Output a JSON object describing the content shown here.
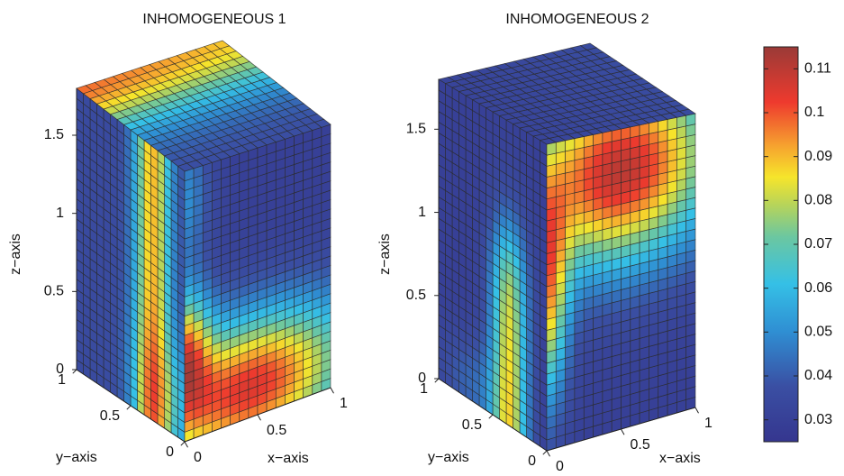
{
  "chart_data": [
    {
      "type": "heatmap",
      "subtype": "3d-box-surface",
      "title": "INHOMOGENEOUS 1",
      "xlabel": "x−axis",
      "ylabel": "y−axis",
      "zlabel": "z−axis",
      "xlim": [
        0,
        1
      ],
      "ylim": [
        0,
        1
      ],
      "zlim": [
        0,
        1.8
      ],
      "xticks": [
        "0",
        "0.5",
        "1"
      ],
      "yticks": [
        "0",
        "0.5",
        "1"
      ],
      "zticks": [
        "0",
        "0.5",
        "1",
        "1.5"
      ],
      "grid": true,
      "faces": {
        "top": {
          "description_values": "high (~0.09) along y=0 edge, low (~0.03) along y=1 edge",
          "range": [
            0.03,
            0.095
          ]
        },
        "front_y0": {
          "range": [
            0.03,
            0.105
          ],
          "hotspot": {
            "x": 0.45,
            "z": 0.2,
            "value": 0.105
          }
        },
        "side_x0": {
          "range": [
            0.04,
            0.09
          ],
          "hotspot_band": "near y=0.3 from z=0 to z=1.8, values ~0.08-0.09"
        }
      }
    },
    {
      "type": "heatmap",
      "subtype": "3d-box-surface",
      "title": "INHOMOGENEOUS 2",
      "xlabel": "x−axis",
      "ylabel": "y−axis",
      "zlabel": "z−axis",
      "xlim": [
        0,
        1
      ],
      "ylim": [
        0,
        1
      ],
      "zlim": [
        0,
        1.8
      ],
      "xticks": [
        "0",
        "0.5",
        "1"
      ],
      "yticks": [
        "0",
        "0.5",
        "1"
      ],
      "zticks": [
        "0",
        "0.5",
        "1",
        "1.5"
      ],
      "grid": true,
      "faces": {
        "top": {
          "range": [
            0.03,
            0.04
          ]
        },
        "front_y0": {
          "range": [
            0.03,
            0.11
          ],
          "hotspot": {
            "x": 0.5,
            "z": 1.55,
            "value": 0.11
          }
        },
        "side_x0": {
          "range": [
            0.03,
            0.09
          ],
          "hotspot_band": "near y=0.35 from z=0 to z=1.0"
        }
      }
    }
  ],
  "colorbar": {
    "colormap": "jet",
    "min": 0.025,
    "max": 0.115,
    "ticks": [
      "0.03",
      "0.04",
      "0.05",
      "0.06",
      "0.07",
      "0.08",
      "0.09",
      "0.1",
      "0.11"
    ],
    "tick_values": [
      0.03,
      0.04,
      0.05,
      0.06,
      0.07,
      0.08,
      0.09,
      0.1,
      0.11
    ]
  }
}
